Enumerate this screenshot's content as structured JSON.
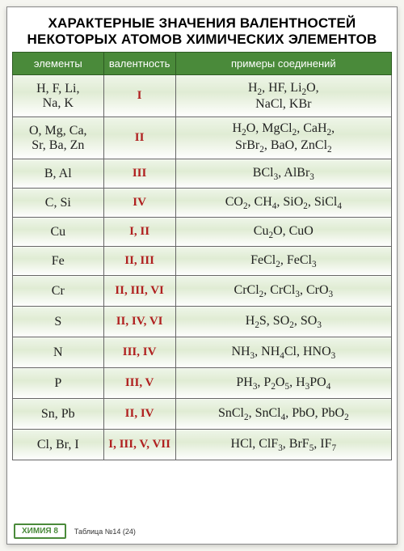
{
  "title_line1": "ХАРАКТЕРНЫЕ ЗНАЧЕНИЯ ВАЛЕНТНОСТЕЙ",
  "title_line2": "НЕКОТОРЫХ АТОМОВ ХИМИЧЕСКИХ ЭЛЕМЕНТОВ",
  "columns": [
    "элементы",
    "валентность",
    "примеры соединений"
  ],
  "rows": [
    {
      "height": "row-h",
      "elements": "H, F, Li,<br>Na, K",
      "valence": "I",
      "examples": "H<sub>2</sub>, HF, Li<sub>2</sub>O,<br>NaCl, KBr"
    },
    {
      "height": "row-h",
      "elements": "O, Mg, Ca,<br>Sr, Ba, Zn",
      "valence": "II",
      "examples": "H<sub>2</sub>O, MgCl<sub>2</sub>, CaH<sub>2</sub>,<br>SrBr<sub>2</sub>, BaO, ZnCl<sub>2</sub>"
    },
    {
      "height": "row-m",
      "elements": "B, Al",
      "valence": "III",
      "examples": "BCl<sub>3</sub>, AlBr<sub>3</sub>"
    },
    {
      "height": "row-m",
      "elements": "C, Si",
      "valence": "IV",
      "examples": "CO<sub>2</sub>, CH<sub>4</sub>, SiO<sub>2</sub>, SiCl<sub>4</sub>"
    },
    {
      "height": "row-m",
      "elements": "Cu",
      "valence": "I, II",
      "examples": "Cu<sub>2</sub>O, CuO"
    },
    {
      "height": "row-m",
      "elements": "Fe",
      "valence": "II, III",
      "examples": "FeCl<sub>2</sub>, FeCl<sub>3</sub>"
    },
    {
      "height": "row-m2",
      "elements": "Cr",
      "valence": "II, III, VI",
      "examples": "CrCl<sub>2</sub>, CrCl<sub>3</sub>, CrO<sub>3</sub>"
    },
    {
      "height": "row-m2",
      "elements": "S",
      "valence": "II, IV, VI",
      "examples": "H<sub>2</sub>S, SO<sub>2</sub>, SO<sub>3</sub>"
    },
    {
      "height": "row-m2",
      "elements": "N",
      "valence": "III, IV",
      "examples": "NH<sub>3</sub>, NH<sub>4</sub>Cl, HNO<sub>3</sub>"
    },
    {
      "height": "row-m2",
      "elements": "P",
      "valence": "III, V",
      "examples": "PH<sub>3</sub>, P<sub>2</sub>O<sub>5</sub>, H<sub>3</sub>PO<sub>4</sub>"
    },
    {
      "height": "row-m2",
      "elements": "Sn, Pb",
      "valence": "II, IV",
      "examples": "SnCl<sub>2</sub>, SnCl<sub>4</sub>, PbO, PbO<sub>2</sub>"
    },
    {
      "height": "row-m2",
      "elements": "Cl, Br, I",
      "valence": "I, III, V, VII",
      "examples": "HCl, ClF<sub>3</sub>, BrF<sub>5</sub>, IF<sub>7</sub>"
    }
  ],
  "footer": {
    "badge": "ХИМИЯ 8",
    "table_no": "Таблица №14 (24)"
  },
  "styling": {
    "type": "table",
    "header_bg": "#4a8a3a",
    "header_text_color": "#ffffff",
    "valence_color": "#b02020",
    "cell_gradient_top": "#eef5e8",
    "cell_gradient_bottom": "#ffffff",
    "border_color": "#666666",
    "title_fontsize": 17,
    "header_fontsize": 13,
    "cell_fontsize": 16,
    "col_widths_pct": [
      24,
      19,
      57
    ]
  }
}
